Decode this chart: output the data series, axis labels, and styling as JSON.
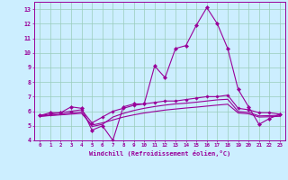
{
  "xlabel": "Windchill (Refroidissement éolien,°C)",
  "x": [
    0,
    1,
    2,
    3,
    4,
    5,
    6,
    7,
    8,
    9,
    10,
    11,
    12,
    13,
    14,
    15,
    16,
    17,
    18,
    19,
    20,
    21,
    22,
    23
  ],
  "line1": [
    5.7,
    5.9,
    5.9,
    6.3,
    6.2,
    4.7,
    5.0,
    4.0,
    6.3,
    6.5,
    6.5,
    9.1,
    8.3,
    10.3,
    10.5,
    11.9,
    13.1,
    12.0,
    10.3,
    7.5,
    6.3,
    5.1,
    5.5,
    5.8
  ],
  "line2": [
    5.7,
    5.8,
    5.9,
    6.0,
    6.1,
    5.2,
    5.6,
    6.0,
    6.2,
    6.4,
    6.5,
    6.6,
    6.7,
    6.7,
    6.8,
    6.9,
    7.0,
    7.0,
    7.1,
    6.2,
    6.1,
    5.9,
    5.9,
    5.8
  ],
  "line3": [
    5.65,
    5.7,
    5.75,
    5.8,
    5.85,
    5.05,
    5.2,
    5.4,
    5.6,
    5.75,
    5.88,
    5.98,
    6.08,
    6.15,
    6.22,
    6.28,
    6.35,
    6.42,
    6.48,
    5.88,
    5.82,
    5.6,
    5.62,
    5.65
  ],
  "line4": [
    5.65,
    5.72,
    5.79,
    5.88,
    5.95,
    4.95,
    5.1,
    5.6,
    5.85,
    6.05,
    6.2,
    6.32,
    6.42,
    6.5,
    6.55,
    6.62,
    6.7,
    6.78,
    6.82,
    5.98,
    5.92,
    5.68,
    5.7,
    5.72
  ],
  "color": "#990099",
  "bg_color": "#cceeff",
  "grid_color": "#99ccbb",
  "ylim": [
    4,
    13.5
  ],
  "xlim": [
    -0.5,
    23.5
  ],
  "yticks": [
    4,
    5,
    6,
    7,
    8,
    9,
    10,
    11,
    12,
    13
  ]
}
